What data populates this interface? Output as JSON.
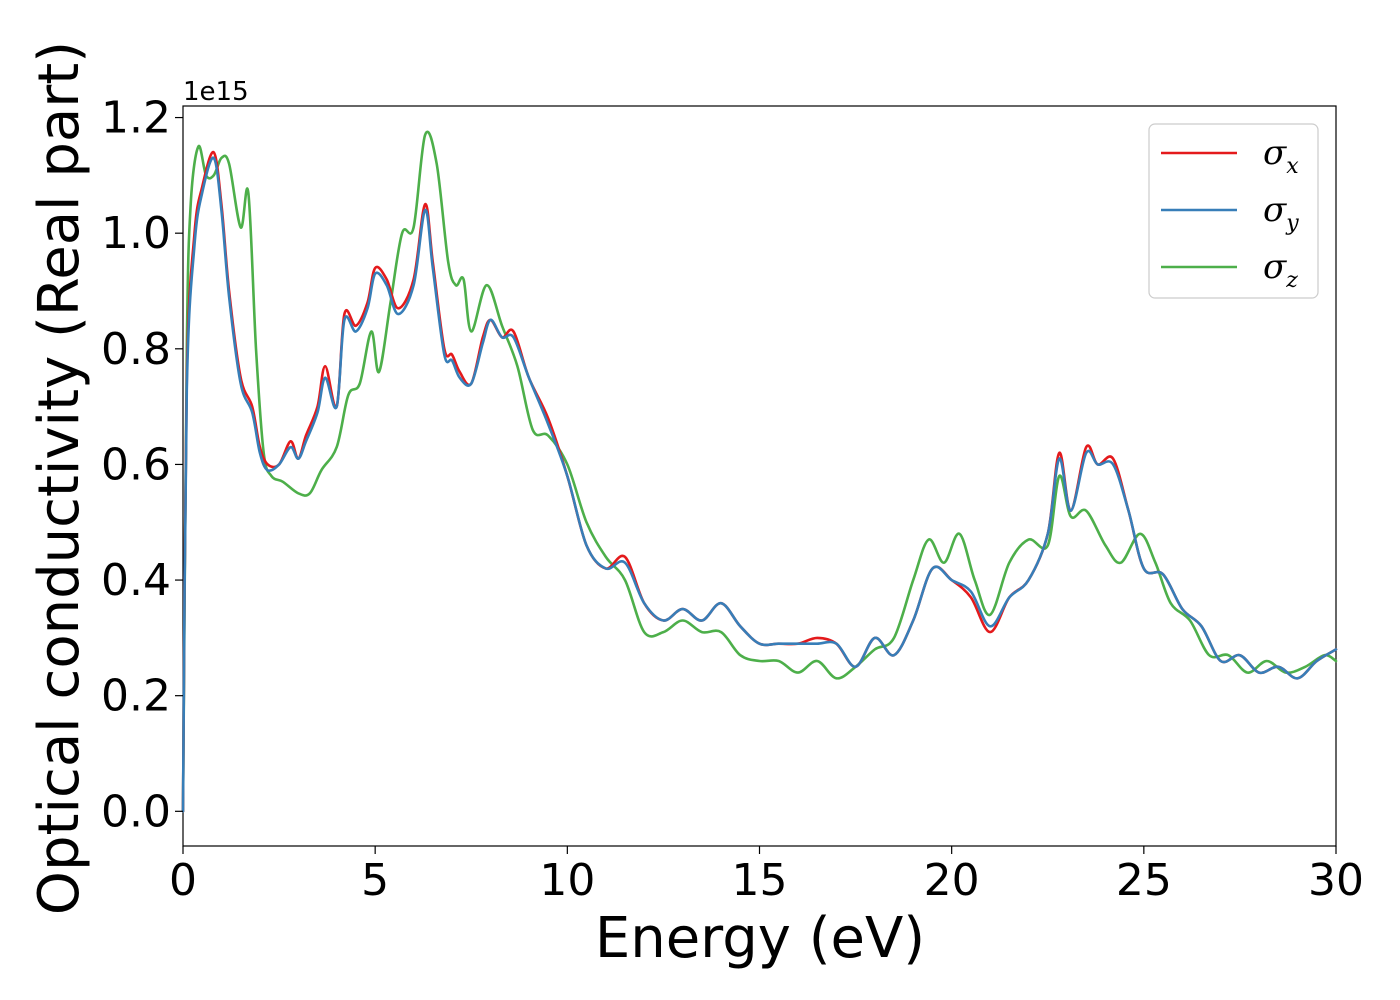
{
  "chart_data": {
    "type": "line",
    "xlabel": "Energy (eV)",
    "ylabel": "Optical conductivity (Real part)",
    "y_offset_label": "1e15",
    "xlim": [
      0,
      30
    ],
    "ylim": [
      -0.06,
      1.22
    ],
    "xticks": [
      0,
      5,
      10,
      15,
      20,
      25,
      30
    ],
    "xtick_labels": [
      "0",
      "5",
      "10",
      "15",
      "20",
      "25",
      "30"
    ],
    "yticks": [
      0.0,
      0.2,
      0.4,
      0.6,
      0.8,
      1.0,
      1.2
    ],
    "ytick_labels": [
      "0.0",
      "0.2",
      "0.4",
      "0.6",
      "0.8",
      "1.0",
      "1.2"
    ],
    "grid": false,
    "legend_position": "top-right",
    "series": [
      {
        "name": "σx",
        "symbol": "σ",
        "subscript": "x",
        "color": "#e41a1c",
        "x": [
          0,
          0.1,
          0.3,
          0.5,
          0.8,
          1.0,
          1.2,
          1.5,
          1.8,
          2.0,
          2.2,
          2.5,
          2.8,
          3.0,
          3.2,
          3.5,
          3.7,
          4.0,
          4.2,
          4.5,
          4.8,
          5.0,
          5.3,
          5.6,
          6.0,
          6.3,
          6.5,
          6.8,
          7.0,
          7.2,
          7.5,
          7.8,
          8.0,
          8.3,
          8.6,
          9.0,
          9.5,
          10.0,
          10.5,
          11.0,
          11.5,
          12.0,
          12.5,
          13.0,
          13.5,
          14.0,
          14.5,
          15.0,
          15.5,
          16.0,
          16.5,
          17.0,
          17.5,
          18.0,
          18.5,
          19.0,
          19.5,
          20.0,
          20.5,
          21.0,
          21.5,
          22.0,
          22.5,
          22.8,
          23.1,
          23.5,
          23.8,
          24.2,
          24.6,
          25.0,
          25.5,
          26.0,
          26.5,
          27.0,
          27.5,
          28.0,
          28.5,
          29.0,
          29.5,
          30.0
        ],
        "values": [
          0.0,
          0.75,
          1.0,
          1.08,
          1.14,
          1.05,
          0.9,
          0.75,
          0.7,
          0.63,
          0.6,
          0.6,
          0.64,
          0.61,
          0.65,
          0.7,
          0.77,
          0.7,
          0.86,
          0.84,
          0.88,
          0.94,
          0.92,
          0.87,
          0.92,
          1.05,
          0.95,
          0.8,
          0.79,
          0.76,
          0.74,
          0.82,
          0.85,
          0.82,
          0.83,
          0.75,
          0.68,
          0.58,
          0.46,
          0.42,
          0.44,
          0.36,
          0.33,
          0.35,
          0.33,
          0.36,
          0.32,
          0.29,
          0.29,
          0.29,
          0.3,
          0.29,
          0.25,
          0.3,
          0.27,
          0.33,
          0.42,
          0.4,
          0.37,
          0.31,
          0.37,
          0.4,
          0.48,
          0.62,
          0.52,
          0.63,
          0.6,
          0.61,
          0.52,
          0.42,
          0.41,
          0.35,
          0.32,
          0.26,
          0.27,
          0.24,
          0.25,
          0.23,
          0.26,
          0.28
        ]
      },
      {
        "name": "σy",
        "symbol": "σ",
        "subscript": "y",
        "color": "#377eb8",
        "x": [
          0,
          0.1,
          0.3,
          0.5,
          0.8,
          1.0,
          1.2,
          1.5,
          1.8,
          2.0,
          2.2,
          2.5,
          2.8,
          3.0,
          3.2,
          3.5,
          3.7,
          4.0,
          4.2,
          4.5,
          4.8,
          5.0,
          5.3,
          5.6,
          6.0,
          6.3,
          6.5,
          6.8,
          7.0,
          7.2,
          7.5,
          7.8,
          8.0,
          8.3,
          8.6,
          9.0,
          9.5,
          10.0,
          10.5,
          11.0,
          11.5,
          12.0,
          12.5,
          13.0,
          13.5,
          14.0,
          14.5,
          15.0,
          15.5,
          16.0,
          16.5,
          17.0,
          17.5,
          18.0,
          18.5,
          19.0,
          19.5,
          20.0,
          20.5,
          21.0,
          21.5,
          22.0,
          22.5,
          22.8,
          23.1,
          23.5,
          23.8,
          24.2,
          24.6,
          25.0,
          25.5,
          26.0,
          26.5,
          27.0,
          27.5,
          28.0,
          28.5,
          29.0,
          29.5,
          30.0
        ],
        "values": [
          0.0,
          0.73,
          0.98,
          1.07,
          1.13,
          1.04,
          0.89,
          0.74,
          0.69,
          0.62,
          0.59,
          0.6,
          0.63,
          0.61,
          0.64,
          0.69,
          0.75,
          0.7,
          0.85,
          0.83,
          0.87,
          0.93,
          0.91,
          0.86,
          0.91,
          1.04,
          0.94,
          0.79,
          0.78,
          0.75,
          0.74,
          0.81,
          0.85,
          0.82,
          0.82,
          0.75,
          0.67,
          0.58,
          0.46,
          0.42,
          0.43,
          0.36,
          0.33,
          0.35,
          0.33,
          0.36,
          0.32,
          0.29,
          0.29,
          0.29,
          0.29,
          0.29,
          0.25,
          0.3,
          0.27,
          0.33,
          0.42,
          0.4,
          0.38,
          0.32,
          0.37,
          0.4,
          0.48,
          0.61,
          0.52,
          0.62,
          0.6,
          0.6,
          0.52,
          0.42,
          0.41,
          0.35,
          0.32,
          0.26,
          0.27,
          0.24,
          0.25,
          0.23,
          0.26,
          0.28
        ]
      },
      {
        "name": "σz",
        "symbol": "σ",
        "subscript": "z",
        "color": "#4daf4a",
        "x": [
          0,
          0.1,
          0.2,
          0.4,
          0.6,
          0.8,
          1.0,
          1.2,
          1.5,
          1.7,
          1.9,
          2.1,
          2.3,
          2.6,
          3.0,
          3.3,
          3.6,
          4.0,
          4.3,
          4.6,
          4.9,
          5.1,
          5.4,
          5.7,
          6.0,
          6.3,
          6.6,
          6.9,
          7.1,
          7.3,
          7.5,
          7.9,
          8.3,
          8.7,
          9.1,
          9.5,
          10.0,
          10.5,
          11.0,
          11.5,
          12.0,
          12.5,
          13.0,
          13.5,
          14.0,
          14.5,
          15.0,
          15.5,
          16.0,
          16.5,
          17.0,
          17.5,
          18.0,
          18.5,
          19.0,
          19.4,
          19.8,
          20.2,
          20.6,
          21.0,
          21.5,
          22.0,
          22.5,
          22.8,
          23.1,
          23.5,
          24.0,
          24.4,
          24.9,
          25.3,
          25.7,
          26.2,
          26.7,
          27.2,
          27.7,
          28.2,
          28.7,
          29.2,
          29.7,
          30.0
        ],
        "values": [
          0.0,
          0.8,
          1.05,
          1.15,
          1.1,
          1.1,
          1.13,
          1.12,
          1.01,
          1.07,
          0.8,
          0.62,
          0.58,
          0.57,
          0.55,
          0.55,
          0.59,
          0.63,
          0.72,
          0.74,
          0.83,
          0.76,
          0.88,
          1.0,
          1.01,
          1.17,
          1.12,
          0.95,
          0.91,
          0.92,
          0.83,
          0.91,
          0.84,
          0.77,
          0.66,
          0.65,
          0.6,
          0.5,
          0.44,
          0.4,
          0.31,
          0.31,
          0.33,
          0.31,
          0.31,
          0.27,
          0.26,
          0.26,
          0.24,
          0.26,
          0.23,
          0.25,
          0.28,
          0.3,
          0.4,
          0.47,
          0.43,
          0.48,
          0.4,
          0.34,
          0.43,
          0.47,
          0.46,
          0.58,
          0.51,
          0.52,
          0.46,
          0.43,
          0.48,
          0.43,
          0.36,
          0.33,
          0.27,
          0.27,
          0.24,
          0.26,
          0.24,
          0.25,
          0.27,
          0.26
        ]
      }
    ]
  }
}
